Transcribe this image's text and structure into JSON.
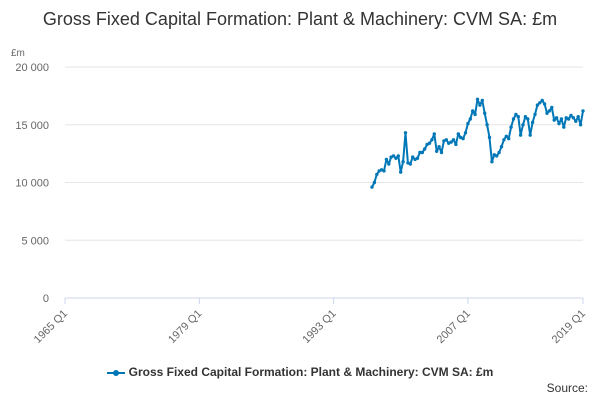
{
  "chart_data": {
    "type": "line",
    "title": "Gross Fixed Capital Formation: Plant & Machinery: CVM SA: £m",
    "ylabel": "£m",
    "xlabel": "",
    "ylim": [
      0,
      20000
    ],
    "xlim": [
      "1965 Q1",
      "2019 Q1"
    ],
    "y_ticks": [
      "20 000",
      "15 000",
      "10 000",
      "5 000",
      "0"
    ],
    "x_ticks": [
      "1965 Q1",
      "1979 Q1",
      "1993 Q1",
      "2007 Q1",
      "2019 Q1"
    ],
    "grid": true,
    "legend_position": "bottom",
    "colors": {
      "series": "#0077b6"
    },
    "series": [
      {
        "name": "Gross Fixed Capital Formation: Plant & Machinery: CVM SA: £m",
        "x": [
          "1997 Q1",
          "1997 Q2",
          "1997 Q3",
          "1997 Q4",
          "1998 Q1",
          "1998 Q2",
          "1998 Q3",
          "1998 Q4",
          "1999 Q1",
          "1999 Q2",
          "1999 Q3",
          "1999 Q4",
          "2000 Q1",
          "2000 Q2",
          "2000 Q3",
          "2000 Q4",
          "2001 Q1",
          "2001 Q2",
          "2001 Q3",
          "2001 Q4",
          "2002 Q1",
          "2002 Q2",
          "2002 Q3",
          "2002 Q4",
          "2003 Q1",
          "2003 Q2",
          "2003 Q3",
          "2003 Q4",
          "2004 Q1",
          "2004 Q2",
          "2004 Q3",
          "2004 Q4",
          "2005 Q1",
          "2005 Q2",
          "2005 Q3",
          "2005 Q4",
          "2006 Q1",
          "2006 Q2",
          "2006 Q3",
          "2006 Q4",
          "2007 Q1",
          "2007 Q2",
          "2007 Q3",
          "2007 Q4",
          "2008 Q1",
          "2008 Q2",
          "2008 Q3",
          "2008 Q4",
          "2009 Q1",
          "2009 Q2",
          "2009 Q3",
          "2009 Q4",
          "2010 Q1",
          "2010 Q2",
          "2010 Q3",
          "2010 Q4",
          "2011 Q1",
          "2011 Q2",
          "2011 Q3",
          "2011 Q4",
          "2012 Q1",
          "2012 Q2",
          "2012 Q3",
          "2012 Q4",
          "2013 Q1",
          "2013 Q2",
          "2013 Q3",
          "2013 Q4",
          "2014 Q1",
          "2014 Q2",
          "2014 Q3",
          "2014 Q4",
          "2015 Q1",
          "2015 Q2",
          "2015 Q3",
          "2015 Q4",
          "2016 Q1",
          "2016 Q2",
          "2016 Q3",
          "2016 Q4",
          "2017 Q1",
          "2017 Q2",
          "2017 Q3",
          "2017 Q4",
          "2018 Q1",
          "2018 Q2",
          "2018 Q3",
          "2018 Q4",
          "2019 Q1"
        ],
        "values": [
          9600,
          10000,
          10700,
          11000,
          11100,
          11000,
          12000,
          11600,
          12200,
          12300,
          12100,
          12300,
          10900,
          11800,
          14300,
          11700,
          11600,
          12200,
          12000,
          12100,
          12600,
          12600,
          12900,
          13300,
          13400,
          13700,
          14200,
          12700,
          13100,
          12600,
          13600,
          13700,
          13400,
          13500,
          13700,
          13300,
          14200,
          13900,
          13800,
          14300,
          15100,
          15500,
          16200,
          15900,
          17200,
          16700,
          17100,
          16000,
          15000,
          13900,
          11800,
          12400,
          12300,
          12600,
          13100,
          13700,
          14000,
          13800,
          14800,
          15500,
          15900,
          15700,
          14100,
          15000,
          15700,
          15500,
          14100,
          15200,
          15900,
          16700,
          16900,
          17100,
          16800,
          16000,
          16200,
          16500,
          15400,
          15600,
          15100,
          15500,
          14800,
          15600,
          15500,
          15800,
          15600,
          15300,
          15700,
          15000,
          16200
        ]
      }
    ]
  },
  "legend": {
    "label": "Gross Fixed Capital Formation: Plant & Machinery: CVM SA: £m"
  },
  "source_label": "Source:"
}
